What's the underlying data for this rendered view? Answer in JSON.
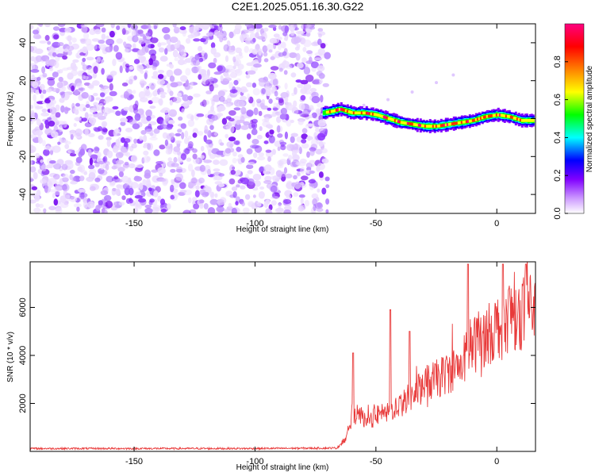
{
  "title": "C2E1.2025.051.16.30.G22",
  "chart_data": [
    {
      "type": "heatmap",
      "xlabel": "Height of straight line (km)",
      "ylabel": "Frequency (Hz)",
      "xlim": [
        -193,
        16
      ],
      "ylim": [
        -50,
        50
      ],
      "xticks": [
        -150,
        -100,
        -50,
        0
      ],
      "yticks": [
        -40,
        -20,
        0,
        20,
        40
      ],
      "colorbar": {
        "label": "Normalized spectral amplitude",
        "range": [
          0,
          1
        ],
        "ticks": [
          "0.0",
          "0.2",
          "0.4",
          "0.6",
          "0.8"
        ],
        "colors": [
          "#ffffff",
          "#cc99ff",
          "#8000ff",
          "#0000ff",
          "#00ffff",
          "#00ff00",
          "#ffff00",
          "#ff8000",
          "#ff0000",
          "#ff0080"
        ]
      },
      "noise_region_x": [
        -193,
        -70
      ],
      "ridge": {
        "x": [
          -72,
          -68,
          -65,
          -60,
          -55,
          -50,
          -45,
          -40,
          -35,
          -30,
          -25,
          -20,
          -15,
          -10,
          -5,
          0,
          5,
          10,
          15
        ],
        "y": [
          3,
          4,
          5,
          3,
          3,
          2,
          0,
          -2,
          -3,
          -4,
          -4,
          -3,
          -2,
          -1,
          1,
          2,
          1,
          -1,
          -1
        ]
      },
      "faint_trace": {
        "x": [
          -55,
          -45,
          -35,
          -25,
          -18
        ],
        "y": [
          7,
          10,
          14,
          19,
          23
        ]
      }
    },
    {
      "type": "line",
      "xlabel": "Height of straight line (km)",
      "ylabel": "SNR (10 * v/v)",
      "xlim": [
        -193,
        16
      ],
      "ylim": [
        0,
        7900
      ],
      "xticks": [
        -150,
        -100,
        -50,
        0
      ],
      "yticks": [
        2000,
        4000,
        6000
      ],
      "color": "#e83a3a",
      "trend": {
        "x": [
          -193,
          -100,
          -66,
          -62,
          -60,
          -58,
          -56,
          -54,
          -50,
          -45,
          -40,
          -35,
          -30,
          -25,
          -20,
          -15,
          -10,
          -5,
          0,
          5,
          10,
          15
        ],
        "y": [
          120,
          120,
          140,
          600,
          1600,
          1300,
          1500,
          1200,
          1500,
          1600,
          2000,
          2300,
          2800,
          3000,
          3300,
          3600,
          4400,
          4800,
          5200,
          5700,
          5800,
          6000
        ]
      },
      "spikes": [
        {
          "x": -59.5,
          "y": 4100
        },
        {
          "x": -44,
          "y": 5900
        },
        {
          "x": -36,
          "y": 5000
        },
        {
          "x": -12,
          "y": 7800
        },
        {
          "x": 2.5,
          "y": 7800
        },
        {
          "x": 12,
          "y": 7800
        }
      ]
    }
  ]
}
